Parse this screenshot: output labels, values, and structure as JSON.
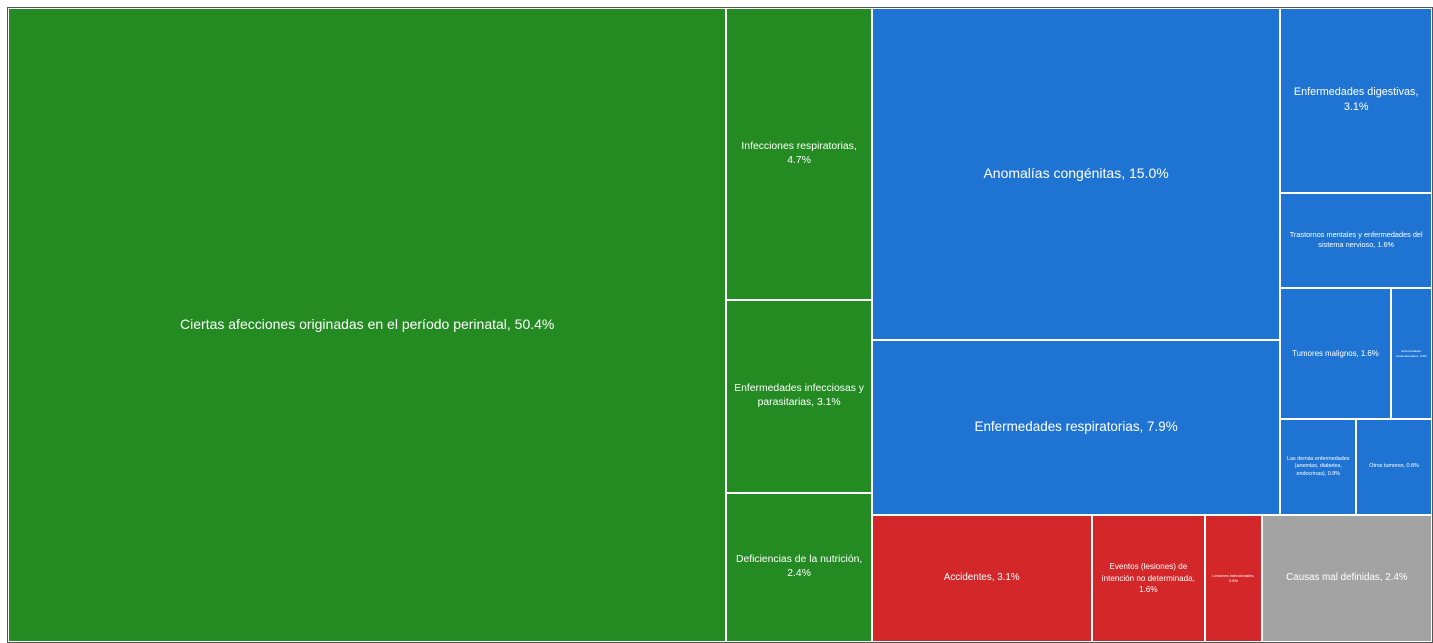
{
  "chart_data": {
    "type": "treemap",
    "items": [
      {
        "name": "Ciertas afecciones originadas en el período perinatal, 50.4%",
        "value": 50.4,
        "color": "#238b22"
      },
      {
        "name": "Infecciones respiratorias, 4.7%",
        "value": 4.7,
        "color": "#238b22"
      },
      {
        "name": "Enfermedades infecciosas y parasitarias, 3.1%",
        "value": 3.1,
        "color": "#238b22"
      },
      {
        "name": "Deficiencias de la nutrición, 2.4%",
        "value": 2.4,
        "color": "#238b22"
      },
      {
        "name": "Anomalías congénitas, 15.0%",
        "value": 15.0,
        "color": "#1f74d3"
      },
      {
        "name": "Enfermedades respiratorias, 7.9%",
        "value": 7.9,
        "color": "#1f74d3"
      },
      {
        "name": "Enfermedades digestivas, 3.1%",
        "value": 3.1,
        "color": "#1f74d3"
      },
      {
        "name": "Trastornos mentales y enfermedades del sistema nervioso, 1.6%",
        "value": 1.6,
        "color": "#1f74d3"
      },
      {
        "name": "Tumores malignos, 1.6%",
        "value": 1.6,
        "color": "#1f74d3"
      },
      {
        "name": "Enfermedades cardiovasculares, 0.6%",
        "value": 0.6,
        "color": "#1f74d3"
      },
      {
        "name": "Las demás enfermedades (anemias, diabetes, endocrinas), 0.8%",
        "value": 0.8,
        "color": "#1f74d3"
      },
      {
        "name": "Otros tumores, 0.8%",
        "value": 0.8,
        "color": "#1f74d3"
      },
      {
        "name": "Accidentes, 3.1%",
        "value": 3.1,
        "color": "#d3272a"
      },
      {
        "name": "Eventos (lesiones) de intención no determinada, 1.6%",
        "value": 1.6,
        "color": "#d3272a"
      },
      {
        "name": "Lesiones intencionales, 0.8%",
        "value": 0.8,
        "color": "#d3272a"
      },
      {
        "name": "Causas mal definidas, 2.4%",
        "value": 2.4,
        "color": "#a3a3a3"
      }
    ]
  }
}
